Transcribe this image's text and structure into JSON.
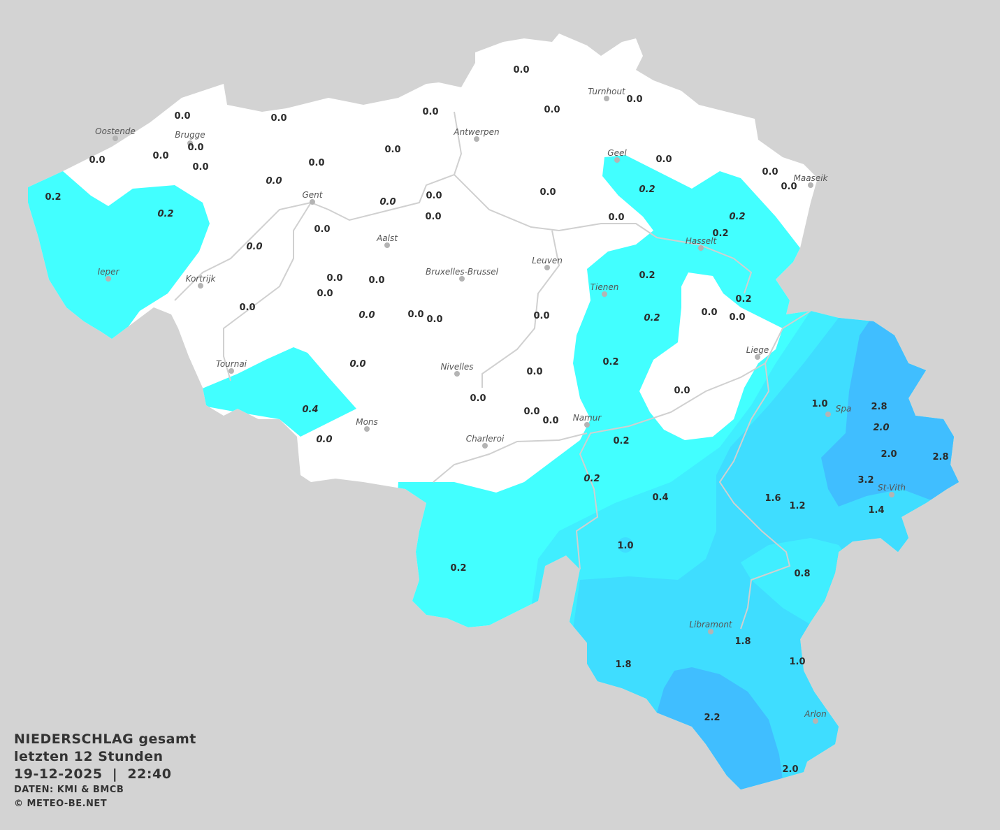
{
  "map": {
    "title_line1": "NIEDERSCHLAG gesamt",
    "title_line2": "letzten 12 Stunden",
    "datetime": "19-12-2025  |  22:40",
    "source": "DATEN: KMI & BMCB",
    "copyright": "© METEO-BE.NET",
    "unit_implied": "mm",
    "colors": {
      "background": "#d3d3d3",
      "no_precip": "#ffffff",
      "level_0_2": "#42ffff",
      "level_0_4": "#40eeff",
      "level_1_0": "#3fddff",
      "level_2_0": "#40beff"
    },
    "cities": [
      "Oostende",
      "Brugge",
      "Antwerpen",
      "Turnhout",
      "Geel",
      "Maaseik",
      "Gent",
      "Aalst",
      "Hasselt",
      "Leuven",
      "Bruxelles-Brussel",
      "Ieper",
      "Kortrijk",
      "Tienen",
      "Liege",
      "Tournai",
      "Nivelles",
      "Spa",
      "Namur",
      "Mons",
      "Charleroi",
      "St-Vith",
      "Libramont",
      "Arlon"
    ],
    "station_values": [
      "0.0",
      "0.0",
      "0.0",
      "0.0",
      "0.0",
      "0.0",
      "0.0",
      "0.0",
      "0.0",
      "0.0",
      "0.0",
      "0.0",
      "0.0",
      "0.2",
      "0.2",
      "0.0",
      "0.0",
      "0.0",
      "0.0",
      "0.0",
      "0.2",
      "0.0",
      "0.0",
      "0.2",
      "0.2",
      "0.0",
      "0.0",
      "0.0",
      "0.2",
      "0.0",
      "0.0",
      "0.0",
      "0.2",
      "0.0",
      "0.0",
      "0.0",
      "0.0",
      "0.0",
      "0.2",
      "0.0",
      "0.0",
      "0.2",
      "0.0",
      "0.0",
      "0.0",
      "0.0",
      "0.4",
      "0.0",
      "0.0",
      "0.0",
      "0.2",
      "1.0",
      "2.8",
      "2.0",
      "2.0",
      "2.8",
      "3.2",
      "0.2",
      "0.4",
      "1.6",
      "1.2",
      "1.4",
      "1.0",
      "0.8",
      "0.2",
      "1.8",
      "1.0",
      "1.8",
      "2.2",
      "2.0"
    ]
  }
}
